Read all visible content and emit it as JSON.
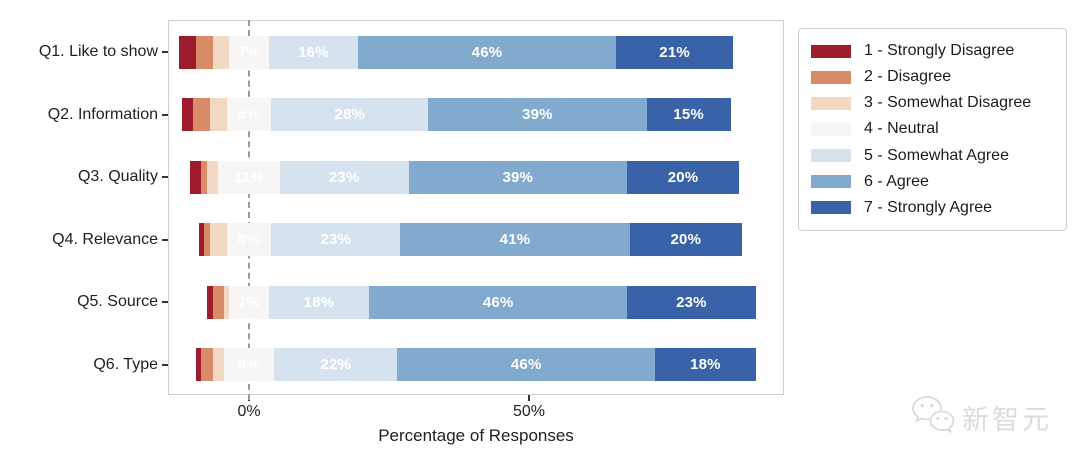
{
  "watermark": {
    "text": "新智元",
    "icon": "wechat-chat-bubbles-icon"
  },
  "chart_data": {
    "type": "bar",
    "variant": "horizontal-diverging-stacked-likert",
    "title": "",
    "xlabel": "Percentage of Responses",
    "ylabel": "",
    "categories": [
      "Q1. Like to show",
      "Q2. Information",
      "Q3. Quality",
      "Q4. Relevance",
      "Q5. Source",
      "Q6. Type"
    ],
    "series": [
      {
        "name": "1 - Strongly Disagree",
        "color": "#9e1b2e",
        "values": [
          3,
          2,
          2,
          1,
          1,
          1
        ]
      },
      {
        "name": "2 - Disagree",
        "color": "#d98a66",
        "values": [
          3,
          3,
          1,
          1,
          2,
          2
        ]
      },
      {
        "name": "3 - Somewhat Disagree",
        "color": "#f3d9c4",
        "values": [
          3,
          3,
          2,
          3,
          1,
          2
        ]
      },
      {
        "name": "4 - Neutral",
        "color": "#f7f6f5",
        "values": [
          7,
          8,
          11,
          8,
          7,
          9
        ]
      },
      {
        "name": "5 - Somewhat Agree",
        "color": "#d6e2ee",
        "values": [
          16,
          28,
          23,
          23,
          18,
          22
        ]
      },
      {
        "name": "6 - Agree",
        "color": "#82aacf",
        "values": [
          46,
          39,
          39,
          41,
          46,
          46
        ]
      },
      {
        "name": "7 - Strongly Agree",
        "color": "#3a62a9",
        "values": [
          21,
          15,
          20,
          20,
          23,
          18
        ]
      }
    ],
    "shown_value_labels": {
      "Q1. Like to show": [
        "7%",
        "16%",
        "46%",
        "21%"
      ],
      "Q2. Information": [
        "8%",
        "28%",
        "39%",
        "15%"
      ],
      "Q3. Quality": [
        "11%",
        "23%",
        "39%",
        "20%"
      ],
      "Q4. Relevance": [
        "8%",
        "23%",
        "41%",
        "20%"
      ],
      "Q5. Source": [
        "7%",
        "18%",
        "46%",
        "23%"
      ],
      "Q6. Type": [
        "9%",
        "22%",
        "46%",
        "18%"
      ]
    },
    "value_label_suffix": "%",
    "value_label_min_to_show": 5,
    "value_label_color": "#ffffff",
    "xticks": [
      {
        "label": "0%",
        "value": 0
      },
      {
        "label": "50%",
        "value": 50
      }
    ],
    "zero_line": {
      "style": "dashed",
      "color": "#9a9a9a",
      "at": 0
    },
    "alignment": "neutral-centered-on-zero",
    "legend_position": "right",
    "grid": false
  }
}
